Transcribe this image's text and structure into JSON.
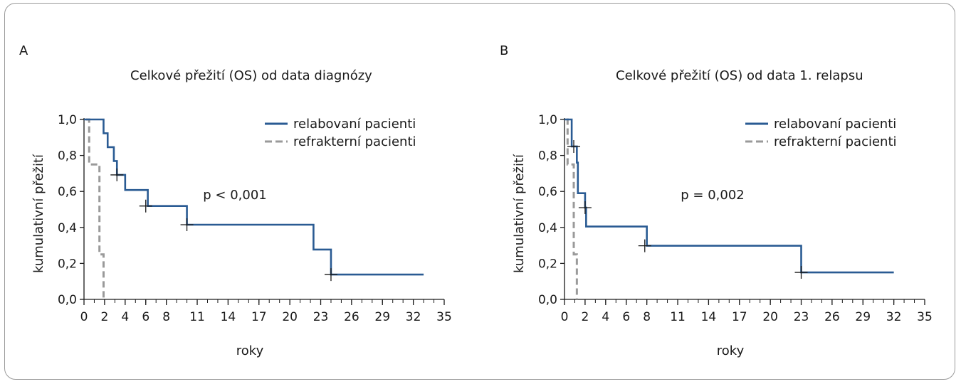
{
  "chart_data": [
    {
      "type": "line",
      "panel_label": "A",
      "title": "Celkové přežití (OS) od data diagnózy",
      "xlabel": "roky",
      "ylabel": "kumulativní přežití",
      "x_ticks": [
        "0",
        "2",
        "4",
        "6",
        "8",
        "11",
        "14",
        "17",
        "20",
        "23",
        "26",
        "29",
        "32",
        "35"
      ],
      "y_ticks": [
        "0,0",
        "0,2",
        "0,4",
        "0,6",
        "0,8",
        "1,0"
      ],
      "xlim": [
        0,
        35
      ],
      "ylim": [
        0,
        1
      ],
      "annotation": "p < 0,001",
      "legend_position": "top-right",
      "series": [
        {
          "name": "relabovaní pacienti",
          "color": "#2a5b93",
          "dash": false,
          "steps": [
            [
              0,
              1.0
            ],
            [
              1.9,
              0.923
            ],
            [
              2.3,
              0.846
            ],
            [
              2.9,
              0.769
            ],
            [
              3.2,
              0.692
            ],
            [
              4.0,
              0.608
            ],
            [
              6.2,
              0.519
            ],
            [
              10.0,
              0.415
            ],
            [
              22.3,
              0.277
            ],
            [
              24.0,
              0.138
            ],
            [
              33.0,
              0.138
            ]
          ],
          "censored": [
            [
              3.2,
              0.692
            ],
            [
              6.0,
              0.519
            ],
            [
              10.0,
              0.415
            ],
            [
              24.0,
              0.138
            ]
          ]
        },
        {
          "name": "refrakterní pacienti",
          "color": "#9a9a9a",
          "dash": true,
          "steps": [
            [
              0.2,
              1.0
            ],
            [
              0.5,
              0.75
            ],
            [
              1.5,
              0.25
            ],
            [
              1.9,
              0.0
            ]
          ],
          "censored": []
        }
      ]
    },
    {
      "type": "line",
      "panel_label": "B",
      "title": "Celkové přežití (OS) od data 1. relapsu",
      "xlabel": "roky",
      "ylabel": "kumulativní přežití",
      "x_ticks": [
        "0",
        "2",
        "4",
        "6",
        "8",
        "11",
        "14",
        "17",
        "20",
        "23",
        "26",
        "29",
        "32",
        "35"
      ],
      "y_ticks": [
        "0,0",
        "0,2",
        "0,4",
        "0,6",
        "0,8",
        "1,0"
      ],
      "xlim": [
        0,
        35
      ],
      "ylim": [
        0,
        1
      ],
      "annotation": "p = 0,002",
      "legend_position": "top-right",
      "series": [
        {
          "name": "relabovaní pacienti",
          "color": "#2a5b93",
          "dash": false,
          "steps": [
            [
              0,
              1.0
            ],
            [
              0.7,
              0.85
            ],
            [
              1.2,
              0.76
            ],
            [
              1.3,
              0.59
            ],
            [
              2.0,
              0.51
            ],
            [
              2.1,
              0.405
            ],
            [
              8.0,
              0.298
            ],
            [
              23.0,
              0.15
            ],
            [
              32.0,
              0.15
            ]
          ],
          "censored": [
            [
              0.9,
              0.85
            ],
            [
              2.0,
              0.51
            ],
            [
              7.8,
              0.298
            ],
            [
              23.0,
              0.15
            ]
          ]
        },
        {
          "name": "refrakterní pacienti",
          "color": "#9a9a9a",
          "dash": true,
          "steps": [
            [
              0.2,
              1.0
            ],
            [
              0.3,
              0.75
            ],
            [
              0.9,
              0.25
            ],
            [
              1.2,
              0.0
            ]
          ],
          "censored": []
        }
      ]
    }
  ]
}
